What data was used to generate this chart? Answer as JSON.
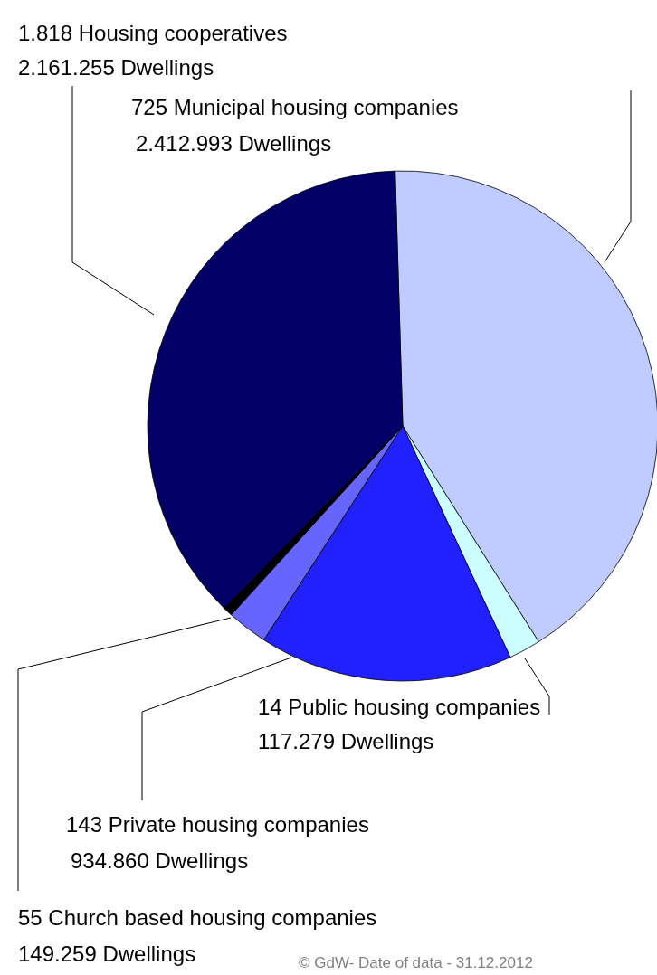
{
  "chart_data": {
    "type": "pie",
    "categories": [
      "725 Municipal housing companies",
      "14 Public housing companies",
      "143 Private housing companies",
      "55 Church based housing companies",
      null,
      "1.818 Housing cooperatives"
    ],
    "values": [
      2412993,
      117279,
      934860,
      149259,
      35000,
      2161255
    ],
    "value_labels": [
      "2.412.993 Dwellings",
      "117.279 Dwellings",
      "934.860 Dwellings",
      "149.259 Dwellings",
      null,
      "2.161.255 Dwellings"
    ],
    "colors": [
      "#c0ccff",
      "#ccffff",
      "#2121ff",
      "#6666ff",
      "#000000",
      "#000066"
    ],
    "annotations": [
      "© GdW- Date of data - 31.12.2012"
    ]
  }
}
